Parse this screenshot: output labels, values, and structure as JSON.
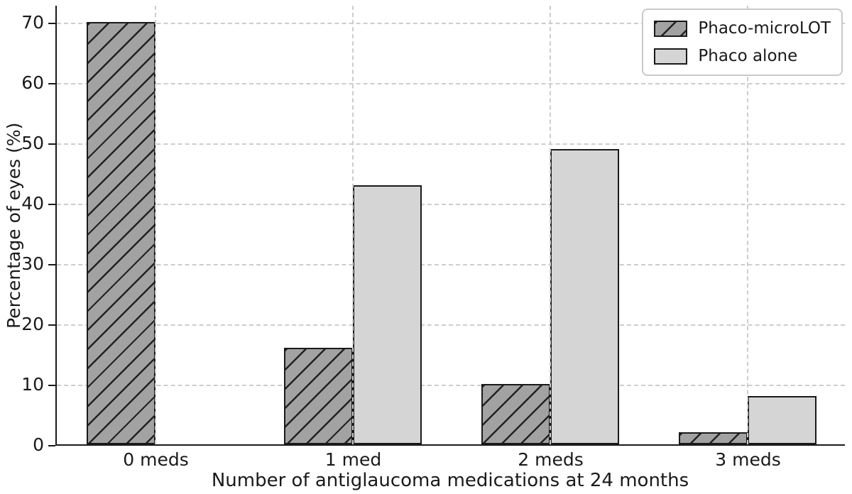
{
  "chart_data": {
    "type": "bar",
    "title": "",
    "xlabel": "Number of antiglaucoma medications at 24 months",
    "ylabel": "Percentage of eyes (%)",
    "categories": [
      "0 meds",
      "1 med",
      "2 meds",
      "3 meds"
    ],
    "series": [
      {
        "name": "Phaco-microLOT",
        "values": [
          70,
          16,
          10,
          2
        ],
        "fill": "#a2a2a2",
        "hatch": "/",
        "hatch_color": "#222222"
      },
      {
        "name": "Phaco alone",
        "values": [
          0,
          43,
          49,
          8
        ],
        "fill": "#d5d5d5",
        "hatch": null,
        "hatch_color": null
      }
    ],
    "ylim": [
      0,
      73
    ],
    "yticks": [
      0,
      10,
      20,
      30,
      40,
      50,
      60,
      70
    ],
    "grid": "dashed, horizontal at yticks and vertical at group centers",
    "grid_color": "#cdcdcd",
    "bar_edge_color": "#1a1a1a",
    "legend_position": "upper right",
    "background_color": "#ffffff",
    "text_color": "#1a1a1a"
  }
}
